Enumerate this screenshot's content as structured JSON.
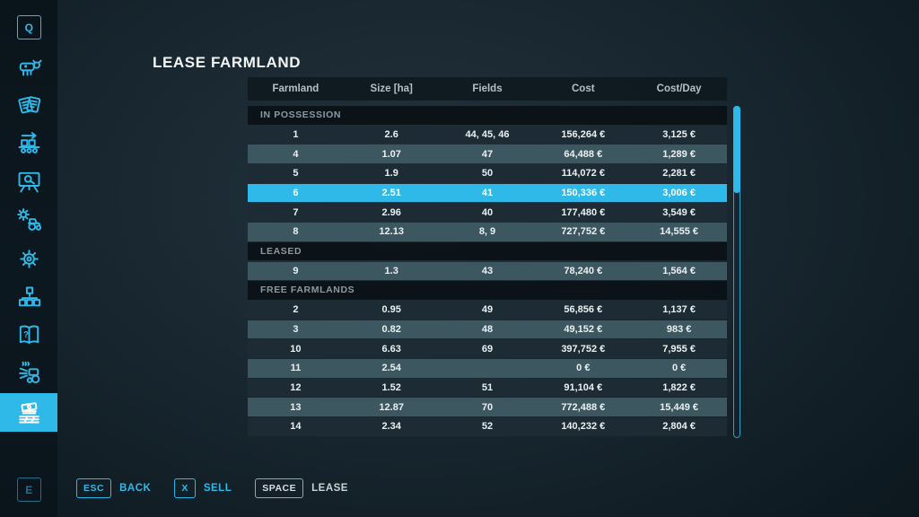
{
  "app": {
    "title": "LEASE FARMLAND"
  },
  "colors": {
    "accent": "#2fb9e8",
    "row_dark": "#1d2b34",
    "row_light": "#3d5761",
    "selected_row": "#2fb9e8",
    "section_header_bg": "#0a1115"
  },
  "sidebar": {
    "top_key": "Q",
    "bottom_key": "E",
    "items": [
      {
        "name": "animals",
        "icon": "cow-icon",
        "active": false
      },
      {
        "name": "contracts",
        "icon": "contracts-icon",
        "active": false
      },
      {
        "name": "production",
        "icon": "production-line-icon",
        "active": false
      },
      {
        "name": "statistics",
        "icon": "statistics-board-icon",
        "active": false
      },
      {
        "name": "vehicle-maintenance",
        "icon": "vehicle-maintenance-icon",
        "active": false
      },
      {
        "name": "settings",
        "icon": "gear-icon",
        "active": false
      },
      {
        "name": "production-chains",
        "icon": "production-chain-icon",
        "active": false
      },
      {
        "name": "help",
        "icon": "help-book-icon",
        "active": false
      },
      {
        "name": "ai-workers",
        "icon": "ai-worker-icon",
        "active": false
      },
      {
        "name": "farmland",
        "icon": "farmland-money-icon",
        "active": true
      }
    ]
  },
  "table": {
    "columns": [
      "Farmland",
      "Size [ha]",
      "Fields",
      "Cost",
      "Cost/Day"
    ],
    "sections": [
      {
        "label": "IN POSSESSION",
        "rows": [
          {
            "farmland": "1",
            "size": "2.6",
            "fields": "44, 45, 46",
            "cost": "156,264 €",
            "cost_day": "3,125 €",
            "variant": "dark"
          },
          {
            "farmland": "4",
            "size": "1.07",
            "fields": "47",
            "cost": "64,488 €",
            "cost_day": "1,289 €",
            "variant": "light"
          },
          {
            "farmland": "5",
            "size": "1.9",
            "fields": "50",
            "cost": "114,072 €",
            "cost_day": "2,281 €",
            "variant": "dark"
          },
          {
            "farmland": "6",
            "size": "2.51",
            "fields": "41",
            "cost": "150,336 €",
            "cost_day": "3,006 €",
            "variant": "selected"
          },
          {
            "farmland": "7",
            "size": "2.96",
            "fields": "40",
            "cost": "177,480 €",
            "cost_day": "3,549 €",
            "variant": "dark"
          },
          {
            "farmland": "8",
            "size": "12.13",
            "fields": "8, 9",
            "cost": "727,752 €",
            "cost_day": "14,555 €",
            "variant": "light"
          }
        ]
      },
      {
        "label": "LEASED",
        "rows": [
          {
            "farmland": "9",
            "size": "1.3",
            "fields": "43",
            "cost": "78,240 €",
            "cost_day": "1,564 €",
            "variant": "light"
          }
        ]
      },
      {
        "label": "FREE FARMLANDS",
        "rows": [
          {
            "farmland": "2",
            "size": "0.95",
            "fields": "49",
            "cost": "56,856 €",
            "cost_day": "1,137 €",
            "variant": "dark"
          },
          {
            "farmland": "3",
            "size": "0.82",
            "fields": "48",
            "cost": "49,152 €",
            "cost_day": "983 €",
            "variant": "light"
          },
          {
            "farmland": "10",
            "size": "6.63",
            "fields": "69",
            "cost": "397,752 €",
            "cost_day": "7,955 €",
            "variant": "dark"
          },
          {
            "farmland": "11",
            "size": "2.54",
            "fields": "",
            "cost": "0 €",
            "cost_day": "0 €",
            "variant": "light"
          },
          {
            "farmland": "12",
            "size": "1.52",
            "fields": "51",
            "cost": "91,104 €",
            "cost_day": "1,822 €",
            "variant": "dark"
          },
          {
            "farmland": "13",
            "size": "12.87",
            "fields": "70",
            "cost": "772,488 €",
            "cost_day": "15,449 €",
            "variant": "light"
          },
          {
            "farmland": "14",
            "size": "2.34",
            "fields": "52",
            "cost": "140,232 €",
            "cost_day": "2,804 €",
            "variant": "dark"
          }
        ]
      }
    ]
  },
  "footer": {
    "actions": [
      {
        "key": "ESC",
        "label": "BACK",
        "style": "accent"
      },
      {
        "key": "X",
        "label": "SELL",
        "style": "accent"
      },
      {
        "key": "SPACE",
        "label": "LEASE",
        "style": "neutral"
      }
    ]
  }
}
